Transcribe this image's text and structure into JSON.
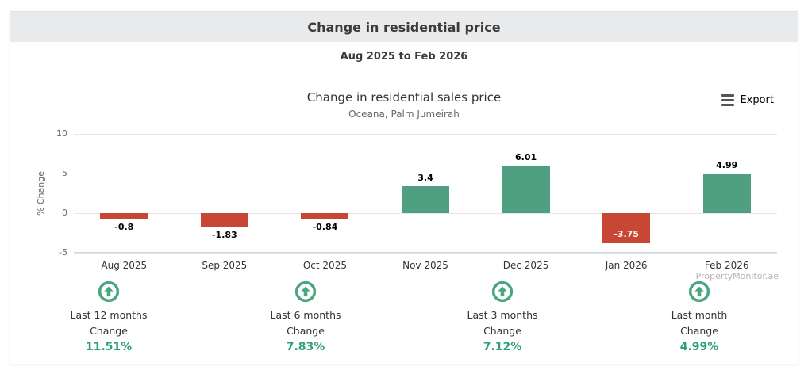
{
  "header": {
    "title": "Change in residential price"
  },
  "subtitle": {
    "date_range": "Aug 2025 to Feb 2026"
  },
  "chart": {
    "title": "Change in residential sales price",
    "subtitle": "Oceana, Palm Jumeirah",
    "export_label": "Export",
    "watermark": "PropertyMonitor.ae",
    "y_axis_title": "% Change"
  },
  "chart_data": {
    "type": "bar",
    "title": "Change in residential sales price",
    "subtitle": "Oceana, Palm Jumeirah",
    "categories": [
      "Aug 2025",
      "Sep 2025",
      "Oct 2025",
      "Nov 2025",
      "Dec 2025",
      "Jan 2026",
      "Feb 2026"
    ],
    "values": [
      -0.8,
      -1.83,
      -0.84,
      3.4,
      6.01,
      -3.75,
      4.99
    ],
    "labels": [
      "-0.8",
      "-1.83",
      "-0.84",
      "3.4",
      "6.01",
      "-3.75",
      "4.99"
    ],
    "xlabel": "",
    "ylabel": "% Change",
    "ylim": [
      -5,
      10
    ],
    "yticks": [
      10,
      5,
      0,
      -5
    ],
    "grid": true,
    "legend": false,
    "positive_color": "#4fa081",
    "negative_color": "#c74634"
  },
  "stats": [
    {
      "label": "Last 12 months",
      "sublabel": "Change",
      "value": "11.51%"
    },
    {
      "label": "Last 6 months",
      "sublabel": "Change",
      "value": "7.83%"
    },
    {
      "label": "Last 3 months",
      "sublabel": "Change",
      "value": "7.12%"
    },
    {
      "label": "Last month",
      "sublabel": "Change",
      "value": "4.99%"
    }
  ],
  "icon_colors": {
    "stat_arrow": "#4aa67e"
  }
}
